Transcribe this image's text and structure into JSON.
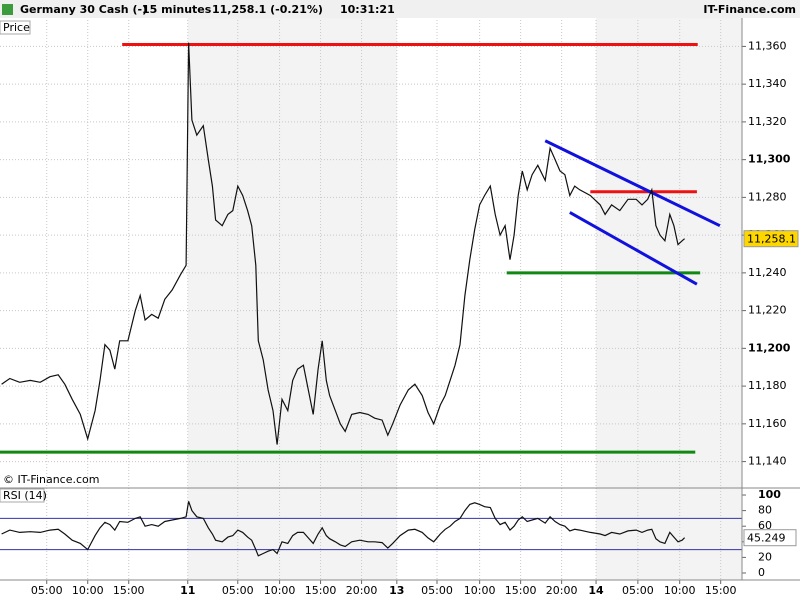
{
  "header": {
    "instrument": "Germany 30 Cash (-)",
    "interval": "15 minutes",
    "quote": "11,258.1 (-0.21%)",
    "time": "10:31:21",
    "brand": "IT-Finance.com"
  },
  "chart_data": [
    {
      "type": "line",
      "panel_label": "Price",
      "watermark": "© IT-Finance.com",
      "color": "#111111",
      "grid": true,
      "xlim": [
        0,
        90.5
      ],
      "ylim": [
        11126,
        11374
      ],
      "xticks": [
        {
          "value": 5.7,
          "label": "05:00"
        },
        {
          "value": 10.7,
          "label": "10:00"
        },
        {
          "value": 15.7,
          "label": "15:00"
        },
        {
          "value": 22.9,
          "label": "11",
          "day": true
        },
        {
          "value": 29,
          "label": "05:00"
        },
        {
          "value": 34.1,
          "label": "10:00"
        },
        {
          "value": 39.1,
          "label": "15:00"
        },
        {
          "value": 44.1,
          "label": "20:00"
        },
        {
          "value": 48.4,
          "label": "13",
          "day": true
        },
        {
          "value": 53.3,
          "label": "05:00"
        },
        {
          "value": 58.5,
          "label": "10:00"
        },
        {
          "value": 63.5,
          "label": "15:00"
        },
        {
          "value": 68.5,
          "label": "20:00"
        },
        {
          "value": 72.7,
          "label": "14",
          "day": true
        },
        {
          "value": 77.8,
          "label": "05:00"
        },
        {
          "value": 82.9,
          "label": "10:00"
        },
        {
          "value": 87.9,
          "label": "15:00"
        }
      ],
      "yticks": [
        {
          "value": 11140,
          "label": "11,140"
        },
        {
          "value": 11160,
          "label": "11,160"
        },
        {
          "value": 11180,
          "label": "11,180"
        },
        {
          "value": 11200,
          "label": "11,200",
          "bold": true
        },
        {
          "value": 11220,
          "label": "11,220"
        },
        {
          "value": 11240,
          "label": "11,240"
        },
        {
          "value": 11260,
          "label": "11,260"
        },
        {
          "value": 11280,
          "label": "11,280"
        },
        {
          "value": 11300,
          "label": "11,300",
          "bold": true
        },
        {
          "value": 11320,
          "label": "11,320"
        },
        {
          "value": 11340,
          "label": "11,340"
        },
        {
          "value": 11360,
          "label": "11,360"
        }
      ],
      "x": [
        0.2,
        1.2,
        2.4,
        3.7,
        4.9,
        6.1,
        7.1,
        7.9,
        8.8,
        9.8,
        10.7,
        11.6,
        12.2,
        12.8,
        13.4,
        14,
        14.6,
        15.6,
        16.5,
        17.1,
        17.7,
        18.5,
        19.3,
        20.1,
        21,
        22,
        22.7,
        23,
        23.4,
        24,
        24.8,
        25.4,
        25.9,
        26.3,
        27.1,
        27.8,
        28.4,
        29,
        29.6,
        30.2,
        30.7,
        31.2,
        31.5,
        32.1,
        32.7,
        33.3,
        33.8,
        34.4,
        35.1,
        35.7,
        36.3,
        37,
        37.6,
        38.2,
        38.8,
        39.3,
        39.8,
        40.2,
        40.9,
        41.5,
        42.1,
        42.9,
        43.9,
        44.9,
        45.7,
        46.6,
        47.3,
        47.9,
        48.8,
        49.8,
        50.6,
        51.5,
        52.2,
        52.9,
        53.7,
        54.3,
        54.9,
        55.5,
        56.1,
        56.7,
        57.3,
        57.9,
        58.5,
        59.1,
        59.8,
        60.4,
        61,
        61.6,
        62.2,
        62.7,
        63.2,
        63.7,
        64.3,
        64.9,
        65.6,
        66.5,
        67.1,
        67.7,
        68.3,
        68.9,
        69.5,
        70.1,
        70.7,
        72,
        73.2,
        73.8,
        74.6,
        75.6,
        76.6,
        77.6,
        78.3,
        79,
        79.5,
        80,
        80.5,
        81.1,
        81.7,
        82.2,
        82.7,
        83.2,
        83.5
      ],
      "values": [
        11181,
        11184,
        11182,
        11183,
        11182,
        11185,
        11186,
        11181,
        11173,
        11165,
        11152,
        11167,
        11183,
        11202,
        11199,
        11189,
        11204,
        11204,
        11220,
        11228,
        11215,
        11218,
        11216,
        11226,
        11231,
        11239,
        11244,
        11362,
        11321,
        11313,
        11318,
        11300,
        11286,
        11268,
        11265,
        11271,
        11273,
        11286,
        11281,
        11273,
        11265,
        11244,
        11204,
        11194,
        11178,
        11167,
        11149,
        11173,
        11167,
        11183,
        11189,
        11191,
        11178,
        11165,
        11189,
        11204,
        11183,
        11175,
        11167,
        11160,
        11156,
        11165,
        11166,
        11165,
        11163,
        11162,
        11154,
        11160,
        11170,
        11178,
        11181,
        11175,
        11166,
        11160,
        11170,
        11175,
        11183,
        11191,
        11202,
        11228,
        11247,
        11263,
        11276,
        11281,
        11286,
        11271,
        11260,
        11265,
        11247,
        11260,
        11281,
        11294,
        11284,
        11292,
        11297,
        11289,
        11306,
        11300,
        11294,
        11292,
        11281,
        11286,
        11284,
        11281,
        11276,
        11271,
        11276,
        11273,
        11279,
        11279,
        11276,
        11279,
        11284,
        11265,
        11260,
        11257,
        11271,
        11265,
        11255,
        11257,
        11258.1
      ],
      "last_price": {
        "value": 11258.1,
        "label": "11,258.1"
      },
      "lines": [
        {
          "x": [
            14.9,
            85.1
          ],
          "y": [
            11361,
            11361
          ],
          "color": "#ee1111"
        },
        {
          "x": [
            0,
            84.8
          ],
          "y": [
            11145,
            11145
          ],
          "color": "#118811"
        },
        {
          "x": [
            61.8,
            85.4
          ],
          "y": [
            11240,
            11240
          ],
          "color": "#118811"
        },
        {
          "x": [
            72,
            85
          ],
          "y": [
            11283,
            11283
          ],
          "color": "#ee1111"
        },
        {
          "x": [
            66.5,
            87.8
          ],
          "y": [
            11310,
            11265
          ],
          "color": "#1111dd"
        },
        {
          "x": [
            69.5,
            85
          ],
          "y": [
            11272,
            11234
          ],
          "color": "#1111dd"
        }
      ]
    },
    {
      "type": "line",
      "panel_label": "RSI (14)",
      "color": "#111111",
      "grid": true,
      "xlim": [
        0,
        90.5
      ],
      "ylim": [
        -9,
        109
      ],
      "yticks": [
        0,
        20,
        40,
        60,
        80,
        100
      ],
      "levels": [
        30,
        70
      ],
      "level_color": "#3333aa",
      "last_value": 45.249,
      "values": [
        50,
        55,
        52,
        53,
        52,
        55,
        56,
        50,
        42,
        38,
        30,
        48,
        58,
        65,
        62,
        55,
        66,
        65,
        70,
        72,
        60,
        62,
        60,
        66,
        68,
        70,
        72,
        92,
        80,
        72,
        70,
        58,
        50,
        42,
        40,
        46,
        48,
        55,
        52,
        46,
        42,
        30,
        22,
        25,
        28,
        30,
        25,
        40,
        38,
        48,
        52,
        52,
        45,
        38,
        50,
        58,
        48,
        44,
        40,
        36,
        34,
        40,
        42,
        40,
        40,
        39,
        32,
        38,
        48,
        55,
        56,
        52,
        45,
        40,
        50,
        56,
        60,
        66,
        70,
        80,
        88,
        90,
        88,
        85,
        84,
        70,
        62,
        65,
        55,
        60,
        68,
        72,
        66,
        68,
        70,
        64,
        72,
        66,
        62,
        60,
        54,
        56,
        55,
        52,
        50,
        48,
        52,
        50,
        54,
        55,
        52,
        55,
        56,
        44,
        40,
        38,
        52,
        46,
        40,
        42,
        45.249
      ]
    }
  ]
}
